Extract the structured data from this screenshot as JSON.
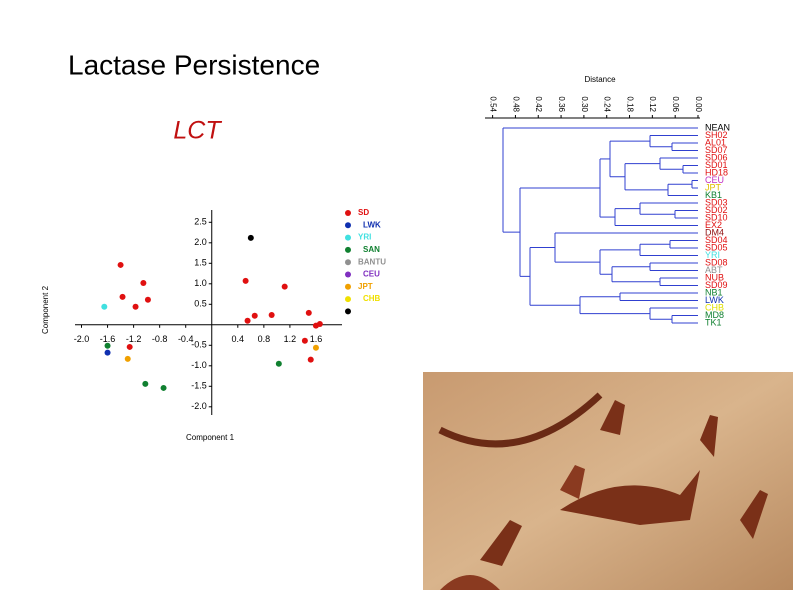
{
  "title": "Lactase Persistence",
  "chart_data": {
    "type": "scatter",
    "title": "LCT",
    "x_label": "Component 1",
    "y_label": "Component 2",
    "xlim": [
      -2.1,
      2.0
    ],
    "ylim": [
      -2.2,
      2.8
    ],
    "xticks": [
      {
        "value": -2.0,
        "label": "-2.0"
      },
      -1.6,
      -1.2,
      -0.8,
      -0.4,
      0.4,
      0.8,
      1.2,
      1.6
    ],
    "yticks": [
      2.5,
      {
        "value": 2.0,
        "label": "2.0"
      },
      1.5,
      {
        "value": 1.0,
        "label": "1.0"
      },
      0.5,
      -0.5,
      {
        "value": -1.0,
        "label": "-1.0"
      },
      -1.5,
      {
        "value": -2.0,
        "label": "-2.0"
      }
    ],
    "series": [
      {
        "name": "SD",
        "color": "#e01010",
        "x": [
          -1.4,
          -1.37,
          -1.05,
          -1.17,
          -0.98,
          -1.26,
          0.52,
          0.55,
          0.66,
          0.92,
          1.12,
          1.49,
          1.43,
          1.52,
          1.6,
          1.66
        ],
        "values": [
          1.46,
          0.68,
          1.02,
          0.44,
          0.61,
          -0.54,
          1.07,
          0.1,
          0.22,
          0.24,
          0.93,
          0.29,
          -0.39,
          -0.85,
          -0.02,
          0.02
        ]
      },
      {
        "name": "LWK",
        "color": "#1030b0",
        "x": [
          -1.6
        ],
        "values": [
          -0.68
        ]
      },
      {
        "name": "YRI",
        "color": "#40e0e0",
        "x": [
          -1.65
        ],
        "values": [
          0.44
        ]
      },
      {
        "name": "SAN",
        "color": "#108030",
        "x": [
          -1.6,
          -1.02,
          -0.74,
          1.03
        ],
        "values": [
          -0.51,
          -1.44,
          -1.54,
          -0.95
        ]
      },
      {
        "name": "BANTU",
        "color": "#909090",
        "x": [],
        "values": []
      },
      {
        "name": "CEU",
        "color": "#8030c0",
        "x": [],
        "values": []
      },
      {
        "name": "JPT",
        "color": "#f0a000",
        "x": [
          -1.29,
          1.6
        ],
        "values": [
          -0.83,
          -0.56
        ]
      },
      {
        "name": "CHB",
        "color": "#f0e000",
        "x": [],
        "values": []
      },
      {
        "name": null,
        "color": "#000000",
        "x": [
          0.6
        ],
        "values": [
          2.12
        ]
      }
    ]
  },
  "dendrogram": {
    "axis_label": "Distance",
    "xlim": [
      0.56,
      0
    ],
    "xticks": [
      0.54,
      0.48,
      0.42,
      0.36,
      {
        "value": 0.3,
        "label": "0.30"
      },
      0.24,
      0.18,
      0.12,
      0.06,
      {
        "value": 0,
        "label": "0.00"
      }
    ],
    "leaves": [
      {
        "label": "NEAN",
        "color": "#000000"
      },
      {
        "label": "SH02",
        "color": "#e01010"
      },
      {
        "label": "AL01",
        "color": "#e01010"
      },
      {
        "label": "SD07",
        "color": "#e01010"
      },
      {
        "label": "SD06",
        "color": "#e01010"
      },
      {
        "label": "SD01",
        "color": "#e01010"
      },
      {
        "label": "HD18",
        "color": "#e01010"
      },
      {
        "label": "CEU",
        "color": "#c030c0"
      },
      {
        "label": "JPT",
        "color": "#e0c000"
      },
      {
        "label": "KB1",
        "color": "#108030"
      },
      {
        "label": "SD03",
        "color": "#e01010"
      },
      {
        "label": "SD02",
        "color": "#e01010"
      },
      {
        "label": "SD10",
        "color": "#e01010"
      },
      {
        "label": "EX2",
        "color": "#e01010"
      },
      {
        "label": "DM4",
        "color": "#901010"
      },
      {
        "label": "SD04",
        "color": "#e01010"
      },
      {
        "label": "SD05",
        "color": "#e01010"
      },
      {
        "label": "YRI",
        "color": "#40e0e0"
      },
      {
        "label": "SD08",
        "color": "#e01010"
      },
      {
        "label": "ABT",
        "color": "#909090"
      },
      {
        "label": "NUB",
        "color": "#e01010"
      },
      {
        "label": "SD09",
        "color": "#e01010"
      },
      {
        "label": "NB1",
        "color": "#108030"
      },
      {
        "label": "LWK",
        "color": "#1030b0"
      },
      {
        "label": "CHB",
        "color": "#e0e000"
      },
      {
        "label": "MD8",
        "color": "#108030"
      },
      {
        "label": "TK1",
        "color": "#108030"
      }
    ]
  }
}
